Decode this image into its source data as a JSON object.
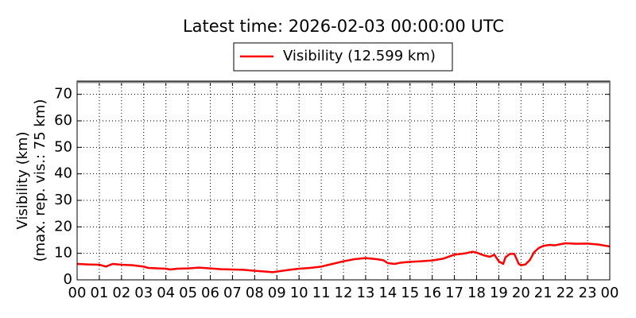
{
  "chart_data": {
    "type": "line",
    "title": "Latest time: 2026-02-03 00:00:00 UTC",
    "ylabel": [
      "Visibility (km)",
      "(max. rep. vis.: 75 km)"
    ],
    "xlim": [
      0,
      24
    ],
    "xticks": [
      {
        "value": 0,
        "label": "00"
      },
      {
        "value": 1,
        "label": "01"
      },
      {
        "value": 2,
        "label": "02"
      },
      {
        "value": 3,
        "label": "03"
      },
      {
        "value": 4,
        "label": "04"
      },
      {
        "value": 5,
        "label": "05"
      },
      {
        "value": 6,
        "label": "06"
      },
      {
        "value": 7,
        "label": "07"
      },
      {
        "value": 8,
        "label": "08"
      },
      {
        "value": 9,
        "label": "09"
      },
      {
        "value": 10,
        "label": "10"
      },
      {
        "value": 11,
        "label": "11"
      },
      {
        "value": 12,
        "label": "12"
      },
      {
        "value": 13,
        "label": "13"
      },
      {
        "value": 14,
        "label": "14"
      },
      {
        "value": 15,
        "label": "15"
      },
      {
        "value": 16,
        "label": "16"
      },
      {
        "value": 17,
        "label": "17"
      },
      {
        "value": 18,
        "label": "18"
      },
      {
        "value": 19,
        "label": "19"
      },
      {
        "value": 20,
        "label": "20"
      },
      {
        "value": 21,
        "label": "21"
      },
      {
        "value": 22,
        "label": "22"
      },
      {
        "value": 23,
        "label": "23"
      },
      {
        "value": 24,
        "label": "00"
      }
    ],
    "ylim": [
      0,
      75
    ],
    "yticks": [
      0,
      10,
      20,
      30,
      40,
      50,
      60,
      70
    ],
    "grid": true,
    "legend": "top",
    "x": [
      0,
      0.5,
      1,
      1.3,
      1.6,
      2,
      2.5,
      3,
      3.2,
      3.5,
      4,
      4.2,
      4.5,
      5,
      5.5,
      6,
      6.5,
      7,
      7.5,
      8,
      8.5,
      8.8,
      9,
      9.5,
      10,
      10.5,
      11,
      11.5,
      12,
      12.5,
      13,
      13.5,
      13.8,
      14,
      14.3,
      14.6,
      15,
      15.5,
      16,
      16.5,
      17,
      17.5,
      17.8,
      18,
      18.3,
      18.6,
      18.8,
      19,
      19.2,
      19.3,
      19.5,
      19.7,
      19.9,
      20,
      20.2,
      20.4,
      20.6,
      20.8,
      21,
      21.3,
      21.5,
      22,
      22.5,
      23,
      23.5,
      24
    ],
    "series": [
      {
        "name": "Visibility (12.599 km)",
        "color": "#ff0000",
        "values": [
          6,
          5.8,
          5.7,
          5,
          6,
          5.7,
          5.5,
          5,
          4.5,
          4.4,
          4.2,
          3.9,
          4.2,
          4.3,
          4.6,
          4.3,
          4,
          3.9,
          3.8,
          3.4,
          3.1,
          2.9,
          3.1,
          3.7,
          4.2,
          4.5,
          5,
          6,
          7,
          7.8,
          8.2,
          7.8,
          7.4,
          6.3,
          6,
          6.5,
          6.8,
          7,
          7.3,
          8,
          9.5,
          10,
          10.6,
          10.3,
          9.3,
          8.7,
          9.5,
          7,
          6,
          8.5,
          9.8,
          9.8,
          6,
          5.5,
          5.8,
          7.5,
          10.5,
          12,
          12.8,
          13.2,
          13,
          13.8,
          13.6,
          13.7,
          13.3,
          12.599
        ]
      }
    ]
  }
}
